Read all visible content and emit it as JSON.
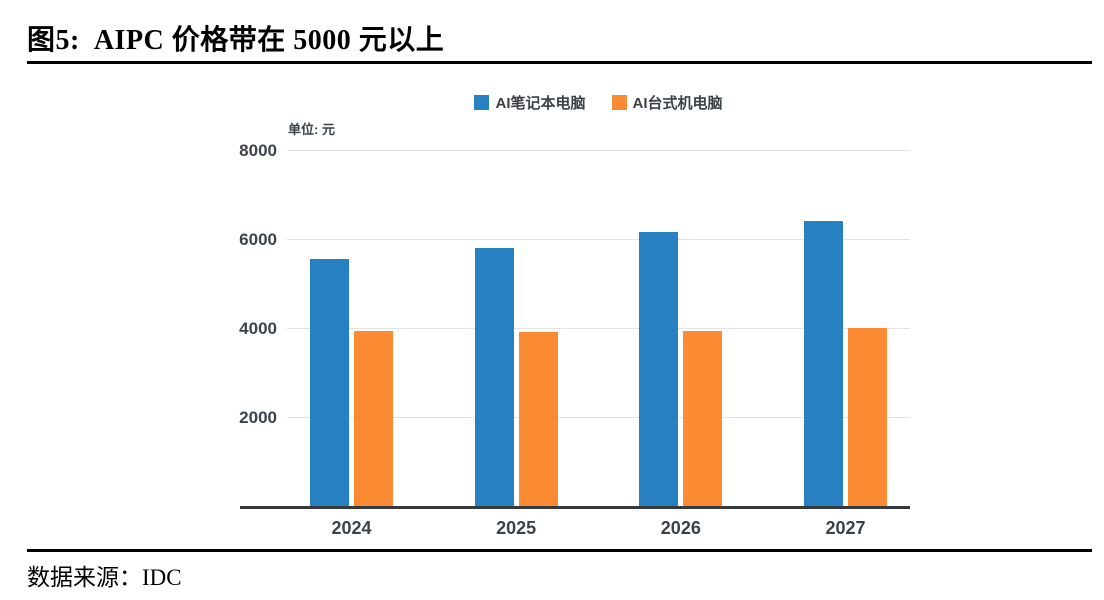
{
  "page": {
    "figure_label": "图5:",
    "figure_title": "AIPC 价格带在 5000 元以上",
    "source_text": "数据来源：IDC"
  },
  "chart_data": {
    "type": "bar",
    "title": "图5: AIPC 价格带在 5000 元以上",
    "unit_label": "单位: 元",
    "categories": [
      "2024",
      "2025",
      "2026",
      "2027"
    ],
    "series": [
      {
        "name": "AI笔记本电脑",
        "color": "#2680C2",
        "values": [
          5550,
          5800,
          6150,
          6400
        ]
      },
      {
        "name": "AI台式机电脑",
        "color": "#FB8B33",
        "values": [
          3930,
          3920,
          3930,
          4000
        ]
      }
    ],
    "ylabel": "元",
    "ylim": [
      0,
      8000
    ],
    "yticks": [
      2000,
      4000,
      6000,
      8000
    ],
    "grid": true,
    "legend_position": "top",
    "source": "IDC"
  }
}
